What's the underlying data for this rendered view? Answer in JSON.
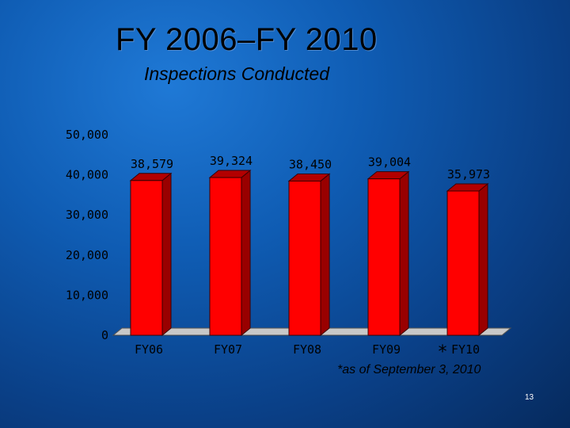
{
  "slide": {
    "title": "FY 2006–FY 2010",
    "subtitle": "Inspections Conducted",
    "footnote": "*as of September 3, 2010",
    "page_number": "13"
  },
  "chart_data": {
    "type": "bar",
    "categories": [
      "FY06",
      "FY07",
      "FY08",
      "FY09",
      "FY10"
    ],
    "values": [
      38579,
      39324,
      38450,
      39004,
      35973
    ],
    "data_labels": [
      "38,579",
      "39,324",
      "38,450",
      "39,004",
      "35,973"
    ],
    "y_ticks": [
      "0",
      "10,000",
      "20,000",
      "30,000",
      "40,000",
      "50,000"
    ],
    "ylim": [
      0,
      50000
    ],
    "bar_color": "#ff0000",
    "bar_side_color": "#990000",
    "category_marker": {
      "category": "FY10",
      "symbol": "*"
    },
    "grid": false,
    "legend": "none"
  }
}
